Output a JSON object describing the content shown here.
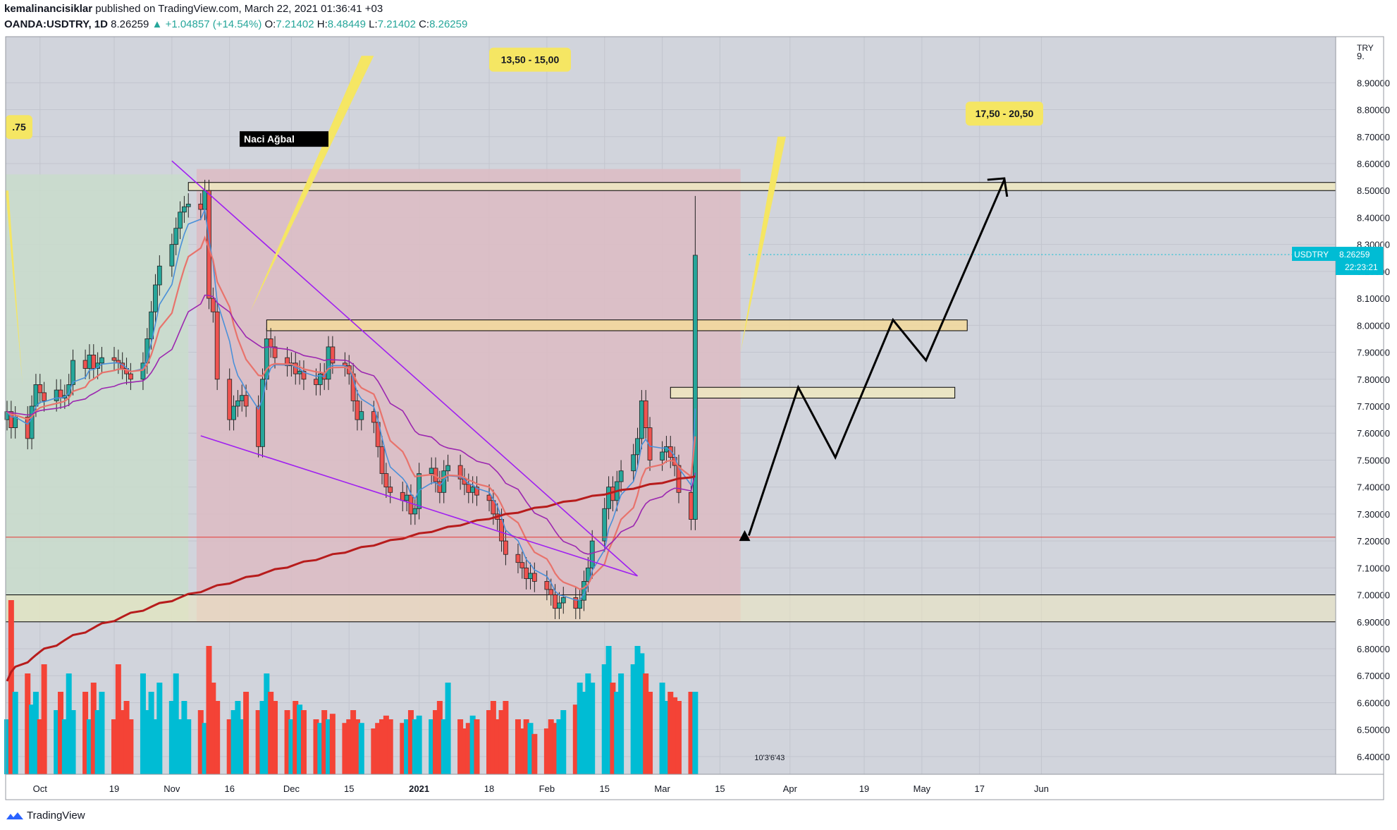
{
  "header": {
    "author": "kemalinancisiklar",
    "published_text": "published on TradingView.com, March 22, 2021 01:36:41 +03",
    "symbol": "OANDA:USDTRY, 1D",
    "last": "8.26259",
    "change_arrow": "▲",
    "change": "+1.04857 (+14.54%)",
    "o_label": "O:",
    "o_value": "7.21402",
    "h_label": "H:",
    "h_value": "8.48449",
    "l_label": "L:",
    "l_value": "7.21402",
    "c_label": "C:",
    "c_value": "8.26259"
  },
  "footer": {
    "brand": "TradingView"
  },
  "colors": {
    "up": "#26a69a",
    "down": "#ef5350",
    "bg": "#d1d4dc",
    "green_zone": "#c9dccb",
    "red_zone": "#dcbcc4",
    "ema_fast": "#4a90d9",
    "ema_mid": "#e8736c",
    "ma_purple": "#9c27b0",
    "ma_red": "#b71c1c"
  },
  "chart_data": {
    "type": "candlestick",
    "currency": "TRY",
    "price_label": "USDTRY",
    "price_value": "8.26259",
    "countdown": "22:23:21",
    "volume_countdown": "10'3'6'43",
    "y_range": [
      6.35,
      9.05
    ],
    "y_ticks": [
      "9.",
      "8.90000",
      "8.80000",
      "8.70000",
      "8.60000",
      "8.50000",
      "8.40000",
      "8.30000",
      "8.20000",
      "8.10000",
      "8.00000",
      "7.90000",
      "7.80000",
      "7.70000",
      "7.60000",
      "7.50000",
      "7.40000",
      "7.30000",
      "7.20000",
      "7.10000",
      "7.00000",
      "6.90000",
      "6.80000",
      "6.70000",
      "6.60000",
      "6.50000",
      "6.40000"
    ],
    "x_ticks": [
      {
        "label": "Oct",
        "date": "2020-10-01",
        "bold": false
      },
      {
        "label": "19",
        "date": "2020-10-19",
        "bold": false
      },
      {
        "label": "Nov",
        "date": "2020-11-02",
        "bold": false
      },
      {
        "label": "16",
        "date": "2020-11-16",
        "bold": false
      },
      {
        "label": "Dec",
        "date": "2020-12-01",
        "bold": false
      },
      {
        "label": "15",
        "date": "2020-12-15",
        "bold": false
      },
      {
        "label": "2021",
        "date": "2021-01-01",
        "bold": true
      },
      {
        "label": "18",
        "date": "2021-01-18",
        "bold": false
      },
      {
        "label": "Feb",
        "date": "2021-02-01",
        "bold": false
      },
      {
        "label": "15",
        "date": "2021-02-15",
        "bold": false
      },
      {
        "label": "Mar",
        "date": "2021-03-01",
        "bold": false
      },
      {
        "label": "15",
        "date": "2021-03-15",
        "bold": false
      },
      {
        "label": "Apr",
        "date": "2021-04-01",
        "bold": false
      },
      {
        "label": "19",
        "date": "2021-04-19",
        "bold": false
      },
      {
        "label": "May",
        "date": "2021-05-03",
        "bold": false
      },
      {
        "label": "17",
        "date": "2021-05-17",
        "bold": false
      },
      {
        "label": "Jun",
        "date": "2021-06-01",
        "bold": false
      }
    ],
    "annotations": [
      {
        "text": ".75"
      },
      {
        "text": "13,50 - 15,00"
      },
      {
        "text": "17,50 - 20,50"
      },
      {
        "text": "Naci Ağbal"
      }
    ],
    "horizontal_line": 7.214,
    "zones": [
      {
        "low": 8.5,
        "high": 8.53
      },
      {
        "low": 7.98,
        "high": 8.02
      },
      {
        "low": 7.73,
        "high": 7.77
      },
      {
        "low": 6.9,
        "high": 7.0
      }
    ],
    "closes": [
      7.68,
      7.62,
      7.66,
      7.58,
      7.7,
      7.78,
      7.75,
      7.72,
      7.76,
      7.73,
      7.74,
      7.78,
      7.87,
      7.84,
      7.89,
      7.84,
      7.86,
      7.88,
      7.87,
      7.86,
      7.84,
      7.82,
      7.8,
      7.86,
      7.95,
      8.05,
      8.15,
      8.22,
      8.3,
      8.36,
      8.42,
      8.44,
      8.45,
      8.43,
      8.5,
      8.1,
      8.05,
      7.8,
      7.65,
      7.7,
      7.72,
      7.74,
      7.7,
      7.55,
      7.8,
      7.95,
      7.92,
      7.88,
      7.85,
      7.86,
      7.82,
      7.83,
      7.8,
      7.78,
      7.82,
      7.8,
      7.92,
      7.86,
      7.85,
      7.82,
      7.72,
      7.65,
      7.68,
      7.64,
      7.55,
      7.45,
      7.4,
      7.38,
      7.35,
      7.37,
      7.3,
      7.32,
      7.45,
      7.47,
      7.42,
      7.38,
      7.46,
      7.48,
      7.43,
      7.41,
      7.38,
      7.4,
      7.37,
      7.35,
      7.3,
      7.28,
      7.2,
      7.15,
      7.12,
      7.1,
      7.06,
      7.08,
      7.05,
      7.02,
      7.0,
      6.95,
      6.97,
      6.99,
      6.95,
      6.98,
      7.05,
      7.1,
      7.2,
      7.32,
      7.4,
      7.35,
      7.42,
      7.46,
      7.52,
      7.58,
      7.72,
      7.62,
      7.5,
      7.53,
      7.55,
      7.51,
      7.48,
      7.38,
      7.28,
      8.26
    ],
    "volume": [
      0.3,
      0.95,
      0.45,
      0.55,
      0.38,
      0.45,
      0.3,
      0.6,
      0.35,
      0.45,
      0.3,
      0.55,
      0.35,
      0.45,
      0.3,
      0.5,
      0.35,
      0.45,
      0.3,
      0.6,
      0.35,
      0.4,
      0.3,
      0.55,
      0.35,
      0.45,
      0.3,
      0.5,
      0.4,
      0.55,
      0.3,
      0.4,
      0.3,
      0.35,
      0.28,
      0.7,
      0.5,
      0.4,
      0.3,
      0.35,
      0.4,
      0.3,
      0.45,
      0.35,
      0.4,
      0.55,
      0.45,
      0.4,
      0.35,
      0.3,
      0.4,
      0.38,
      0.35,
      0.3,
      0.28,
      0.35,
      0.3,
      0.33,
      0.28,
      0.3,
      0.35,
      0.3,
      0.28,
      0.25,
      0.28,
      0.3,
      0.32,
      0.3,
      0.28,
      0.3,
      0.35,
      0.3,
      0.32,
      0.3,
      0.35,
      0.4,
      0.3,
      0.5,
      0.3,
      0.25,
      0.28,
      0.32,
      0.3,
      0.35,
      0.4,
      0.3,
      0.35,
      0.4,
      0.3,
      0.25,
      0.3,
      0.28,
      0.22,
      0.25,
      0.3,
      0.28,
      0.3,
      0.35,
      0.38,
      0.5,
      0.45,
      0.55,
      0.5,
      0.6,
      0.7,
      0.5,
      0.45,
      0.55,
      0.6,
      0.7,
      0.66,
      0.55,
      0.45,
      0.5,
      0.4,
      0.45,
      0.42,
      0.4,
      0.45,
      0.45
    ]
  }
}
